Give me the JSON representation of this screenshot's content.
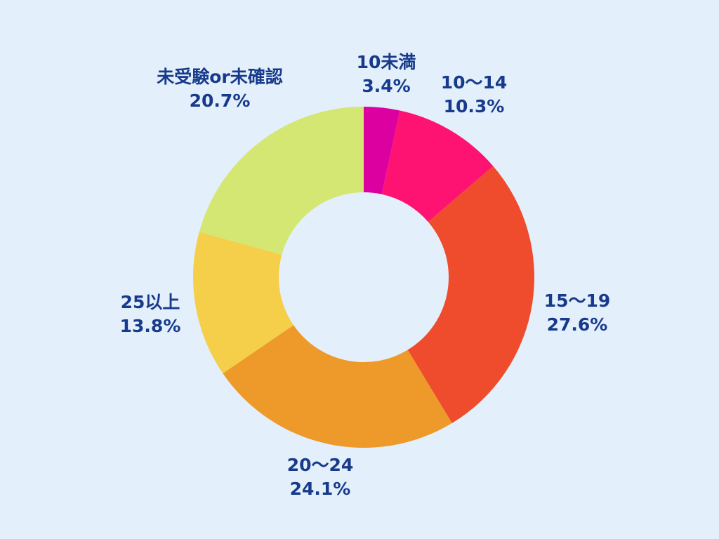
{
  "chart_data": {
    "type": "pie",
    "donut": true,
    "title": "",
    "legend": "none",
    "categories": [
      "10未満",
      "10～14",
      "15～19",
      "20～24",
      "25以上",
      "未受験or未確認"
    ],
    "values": [
      3.4,
      10.3,
      27.6,
      24.1,
      13.8,
      20.7
    ],
    "value_labels": [
      "3.4%",
      "10.3%",
      "27.6%",
      "24.1%",
      "13.8%",
      "20.7%"
    ],
    "colors": [
      "#dd00a0",
      "#ff1372",
      "#ee4c2c",
      "#ed9a2a",
      "#f5cf49",
      "#d5e773"
    ]
  }
}
